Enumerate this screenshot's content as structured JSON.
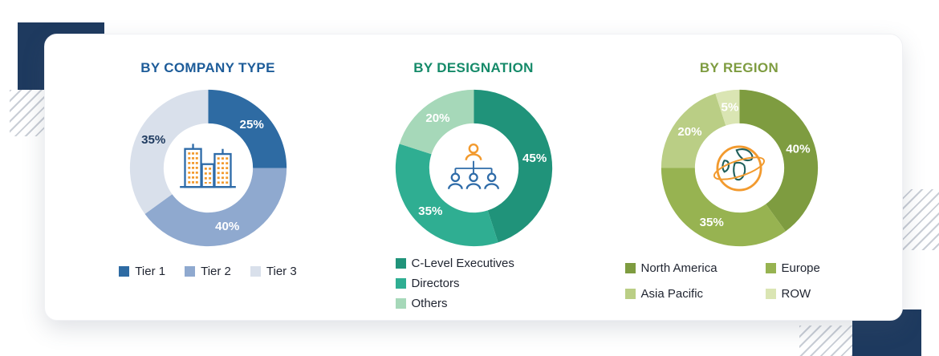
{
  "decor": {
    "navy": "#1E3A5F",
    "hatch_line": "#C9CED6"
  },
  "chart_data": [
    {
      "type": "pie",
      "subtype": "donut",
      "title": "BY COMPANY TYPE",
      "title_color": "#1D5C99",
      "categories": [
        "Tier 1",
        "Tier 2",
        "Tier 3"
      ],
      "values": [
        25,
        40,
        35
      ],
      "value_labels": [
        "25%",
        "40%",
        "35%"
      ],
      "colors": [
        "#2E6BA3",
        "#8FA9CF",
        "#D9E0EB"
      ],
      "value_label_colors": [
        "#FFFFFF",
        "#FFFFFF",
        "#1E3A5F"
      ],
      "legend_position": "bottom-row",
      "center_icon": "buildings-icon"
    },
    {
      "type": "pie",
      "subtype": "donut",
      "title": "BY DESIGNATION",
      "title_color": "#158A69",
      "categories": [
        "C-Level Executives",
        "Directors",
        "Others"
      ],
      "values": [
        45,
        35,
        20
      ],
      "value_labels": [
        "45%",
        "35%",
        "20%"
      ],
      "colors": [
        "#20937A",
        "#2FAE92",
        "#A6D8B9"
      ],
      "value_label_colors": [
        "#FFFFFF",
        "#FFFFFF",
        "#FFFFFF"
      ],
      "legend_position": "bottom-column",
      "center_icon": "org-chart-icon"
    },
    {
      "type": "pie",
      "subtype": "donut",
      "title": "BY REGION",
      "title_color": "#7E9C40",
      "categories": [
        "North America",
        "Europe",
        "Asia Pacific",
        "ROW"
      ],
      "values": [
        40,
        35,
        20,
        5
      ],
      "value_labels": [
        "40%",
        "35%",
        "20%",
        "5%"
      ],
      "colors": [
        "#7E9C40",
        "#97B351",
        "#BACE85",
        "#DAE5B3"
      ],
      "value_label_colors": [
        "#FFFFFF",
        "#FFFFFF",
        "#FFFFFF",
        "#FFFFFF"
      ],
      "legend_position": "bottom-grid",
      "center_icon": "globe-icon"
    }
  ]
}
